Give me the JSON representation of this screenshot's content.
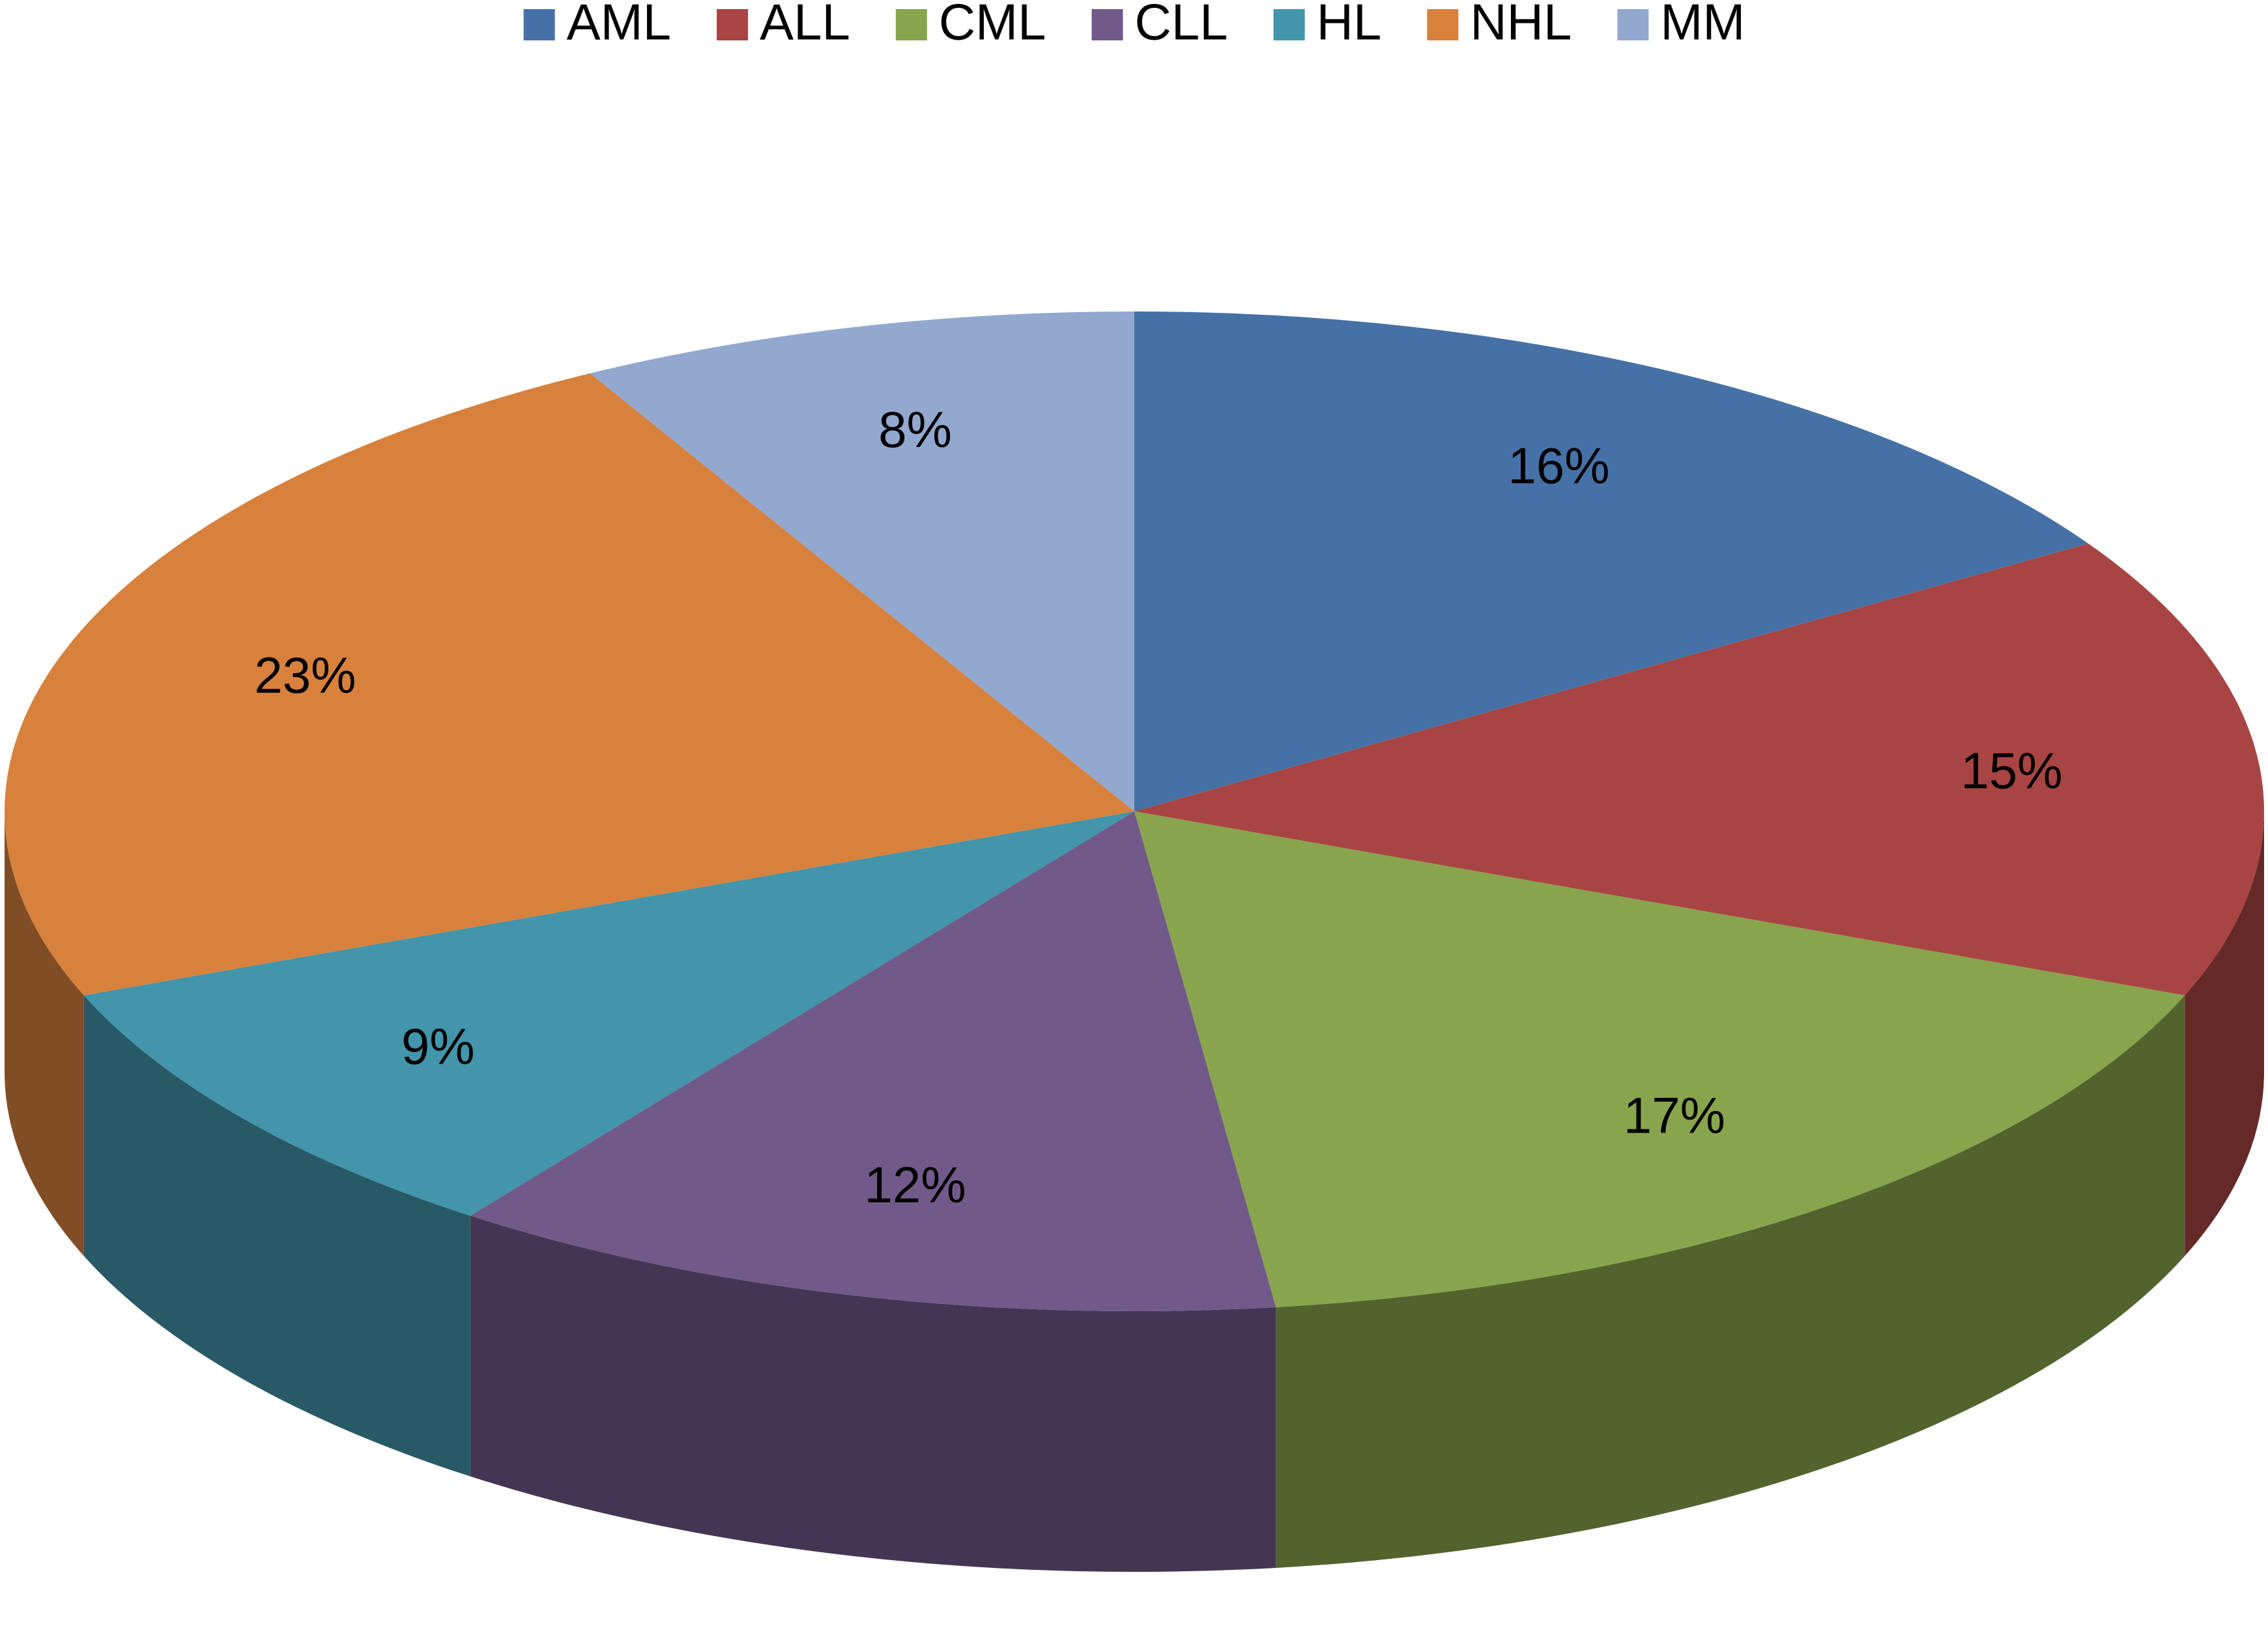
{
  "chart_data": {
    "type": "pie",
    "categories": [
      "AML",
      "ALL",
      "CML",
      "CLL",
      "HL",
      "NHL",
      "MM"
    ],
    "values": [
      16,
      15,
      17,
      12,
      9,
      23,
      8
    ],
    "value_labels": [
      "16%",
      "15%",
      "17%",
      "12%",
      "9%",
      "23%",
      "8%"
    ],
    "colors": [
      "#4671a6",
      "#a84443",
      "#88a54d",
      "#715a8a",
      "#4295ab",
      "#d7813d",
      "#93a8cf"
    ],
    "legend": "top"
  }
}
